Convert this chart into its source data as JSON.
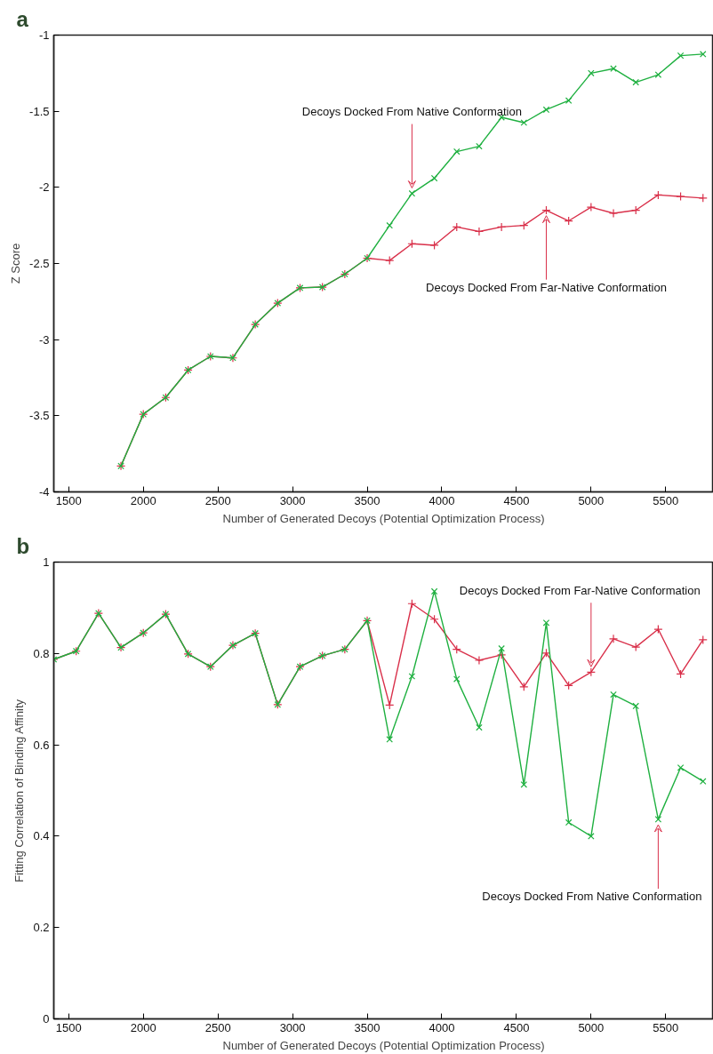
{
  "chart_data": [
    {
      "type": "line",
      "title": "a",
      "xlabel": "Number of Generated Decoys (Potential Optimization Process)",
      "ylabel": "Z Score",
      "x": [
        1850,
        2000,
        2150,
        2300,
        2450,
        2600,
        2750,
        2900,
        3050,
        3200,
        3350,
        3500,
        3650,
        3800,
        3950,
        4100,
        4250,
        4400,
        4550,
        4700,
        4850,
        5000,
        5150,
        5300,
        5450,
        5600,
        5750
      ],
      "series": [
        {
          "color": "#d9304a",
          "marker": "cross",
          "values": [
            -3.83,
            -3.49,
            -3.38,
            -3.2,
            -3.11,
            -3.12,
            -2.9,
            -2.76,
            -2.66,
            -2.655,
            -2.57,
            -2.465,
            -2.48,
            -2.37,
            -2.38,
            -2.26,
            -2.29,
            -2.26,
            -2.25,
            -2.15,
            -2.22,
            -2.13,
            -2.17,
            -2.15,
            -2.05,
            -2.06,
            -2.07
          ]
        },
        {
          "color": "#1fb040",
          "marker": "x",
          "values": [
            -3.83,
            -3.49,
            -3.38,
            -3.2,
            -3.11,
            -3.12,
            -2.9,
            -2.76,
            -2.66,
            -2.655,
            -2.57,
            -2.465,
            -2.25,
            -2.04,
            -1.94,
            -1.765,
            -1.73,
            -1.54,
            -1.575,
            -1.49,
            -1.43,
            -1.25,
            -1.22,
            -1.31,
            -1.26,
            -1.135,
            -1.125
          ]
        }
      ],
      "xlim": [
        1400,
        5820
      ],
      "ylim": [
        -4,
        -1
      ],
      "xticks": [
        1500,
        2000,
        2500,
        3000,
        3500,
        4000,
        4500,
        5000,
        5500
      ],
      "yticks": [
        -4,
        -3.5,
        -3,
        -2.5,
        -2,
        -1.5,
        -1
      ],
      "annotations": [
        {
          "text": "Decoys Docked From Native Conformation",
          "x": 3800,
          "y": -2.04
        },
        {
          "text": "Decoys Docked From Far-Native Conformation",
          "x": 4700,
          "y": -2.15
        }
      ]
    },
    {
      "type": "line",
      "title": "b",
      "xlabel": "Number of Generated Decoys (Potential Optimization Process)",
      "ylabel": "Fitting Correlation of Binding Affinity",
      "x": [
        1400,
        1550,
        1700,
        1850,
        2000,
        2150,
        2300,
        2450,
        2600,
        2750,
        2900,
        3050,
        3200,
        3350,
        3500,
        3650,
        3800,
        3950,
        4100,
        4250,
        4400,
        4550,
        4700,
        4850,
        5000,
        5150,
        5300,
        5450,
        5600,
        5750
      ],
      "series": [
        {
          "color": "#d9304a",
          "marker": "cross",
          "values": [
            0.787,
            0.805,
            0.888,
            0.813,
            0.845,
            0.886,
            0.799,
            0.771,
            0.818,
            0.844,
            0.688,
            0.771,
            0.795,
            0.809,
            0.872,
            0.687,
            0.909,
            0.875,
            0.809,
            0.785,
            0.797,
            0.727,
            0.801,
            0.73,
            0.759,
            0.832,
            0.814,
            0.853,
            0.755,
            0.83
          ]
        },
        {
          "color": "#1fb040",
          "marker": "x",
          "values": [
            0.787,
            0.805,
            0.888,
            0.813,
            0.845,
            0.886,
            0.799,
            0.771,
            0.818,
            0.844,
            0.688,
            0.771,
            0.795,
            0.809,
            0.872,
            0.612,
            0.75,
            0.936,
            0.744,
            0.638,
            0.811,
            0.513,
            0.867,
            0.43,
            0.4,
            0.71,
            0.685,
            0.437,
            0.55,
            0.52
          ]
        }
      ],
      "xlim": [
        1400,
        5820
      ],
      "ylim": [
        0,
        1
      ],
      "xticks": [
        1500,
        2000,
        2500,
        3000,
        3500,
        4000,
        4500,
        5000,
        5500
      ],
      "yticks": [
        0,
        0.2,
        0.4,
        0.6,
        0.8,
        1
      ],
      "annotations": [
        {
          "text": "Decoys Docked From Far-Native Conformation",
          "x": 5000,
          "y": 0.759
        },
        {
          "text": "Decoys Docked From Native Conformation",
          "x": 5450,
          "y": 0.437
        }
      ]
    }
  ]
}
